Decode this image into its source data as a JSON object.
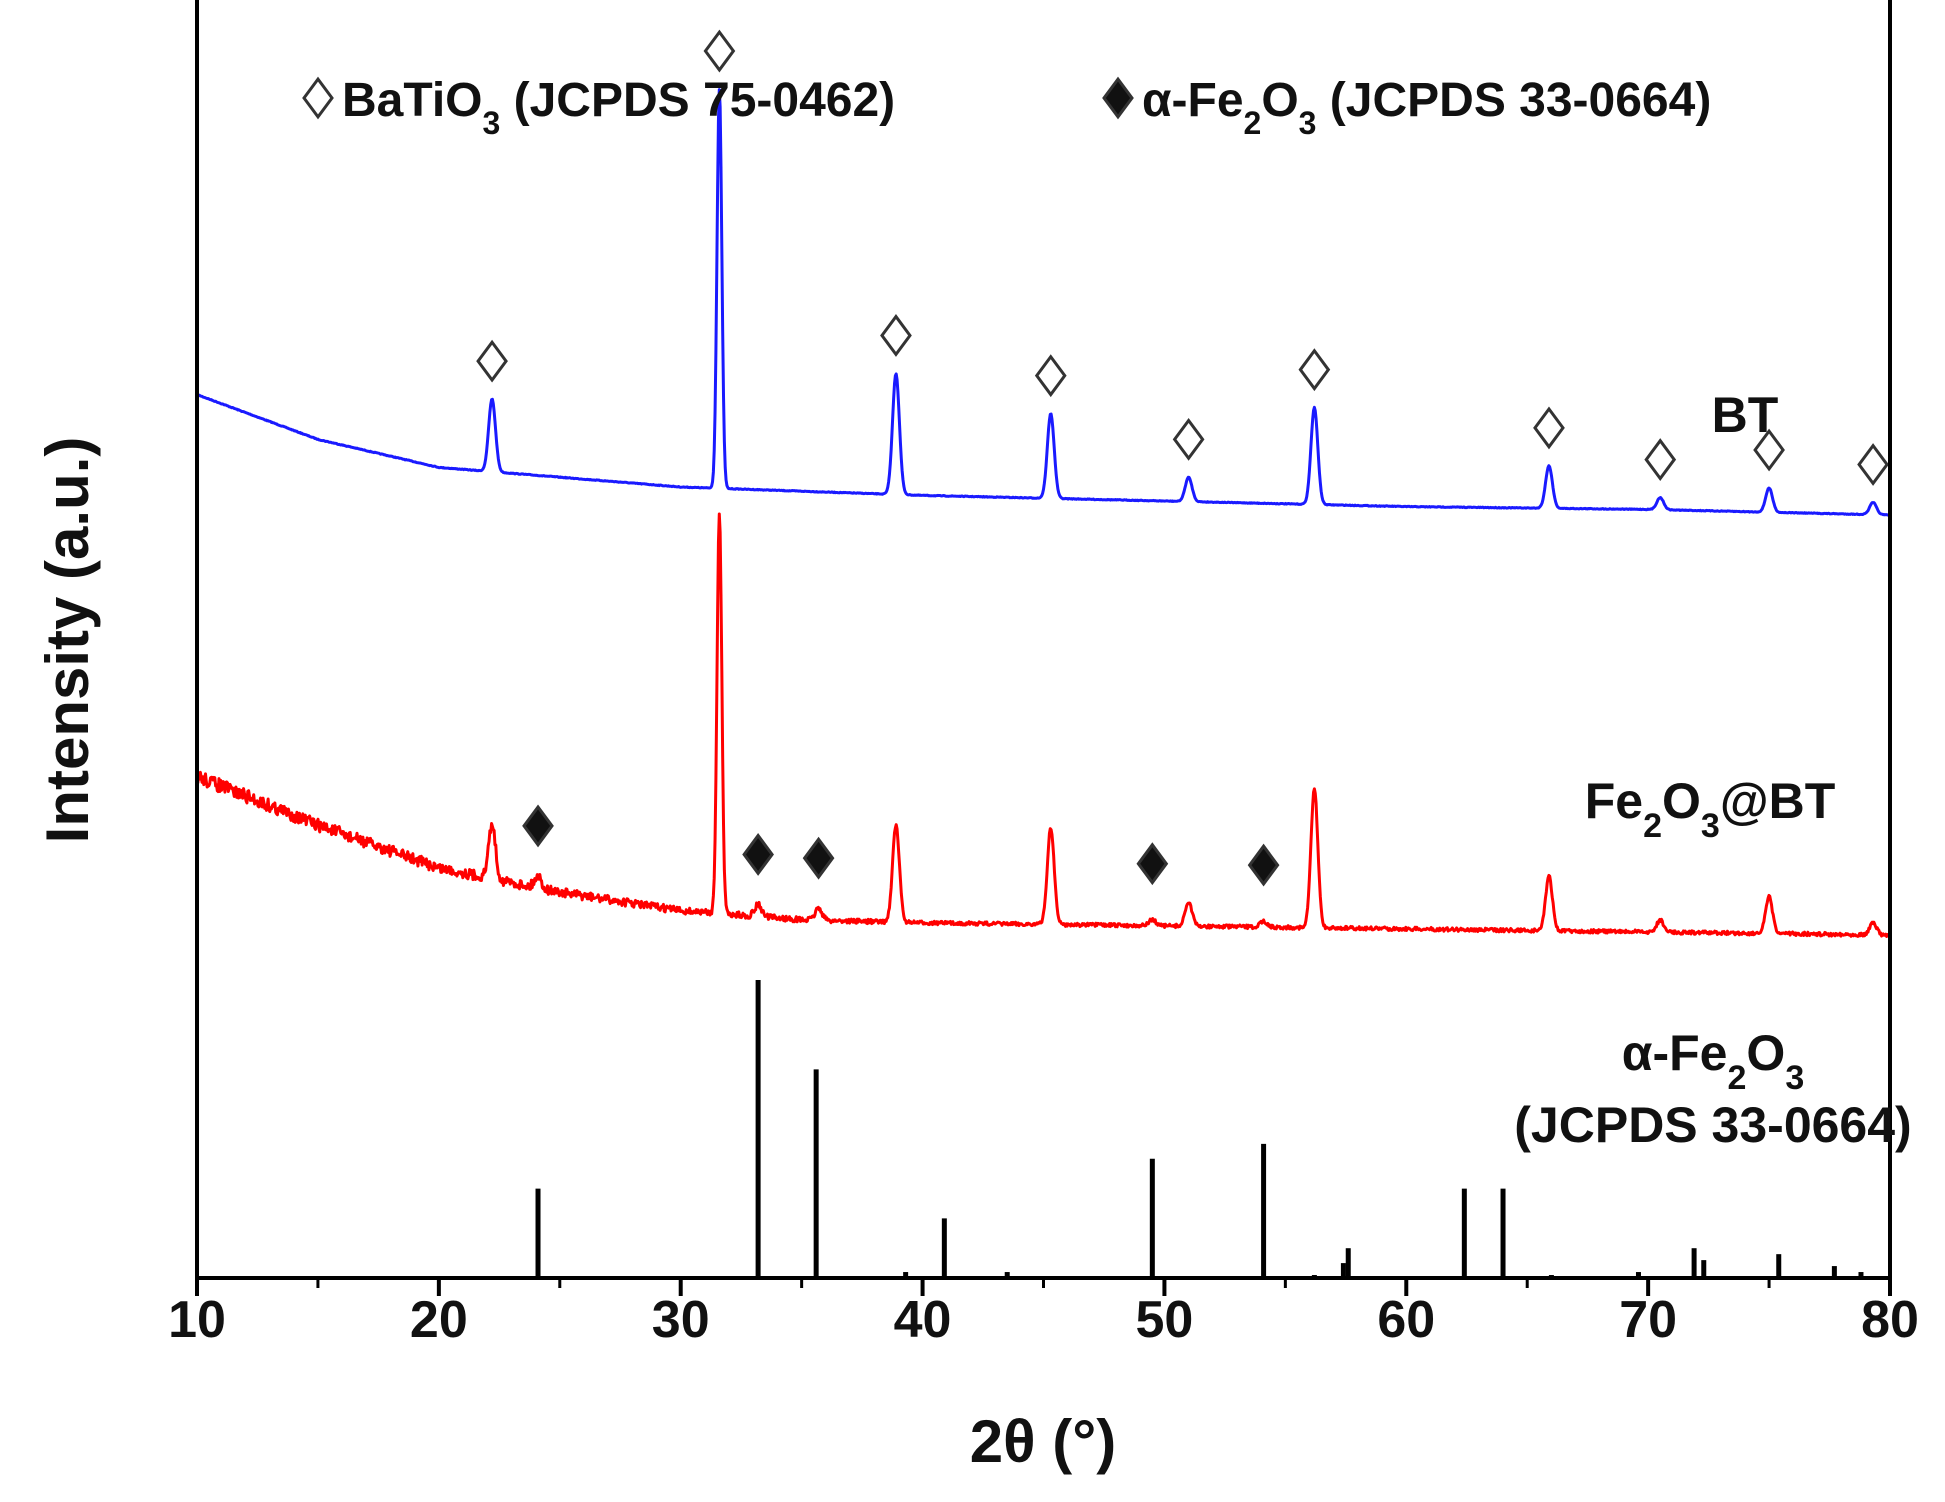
{
  "chart_data": {
    "type": "line",
    "xlabel": "2θ (°)",
    "ylabel": "Intensity (a.u.)",
    "xlim": [
      10,
      80
    ],
    "xticks": [
      "10",
      "20",
      "30",
      "40",
      "50",
      "60",
      "70",
      "80"
    ],
    "grid": false,
    "legend": {
      "position": "top",
      "entries": [
        {
          "symbol": "open-diamond",
          "text": "BaTiO3 (JCPDS 75-0462)",
          "parts": [
            "BaTiO",
            "3",
            " (JCPDS 75-0462)"
          ]
        },
        {
          "symbol": "filled-diamond",
          "text": "α-Fe2O3 (JCPDS 33-0664)",
          "parts": [
            "α-Fe",
            "2",
            "O",
            "3",
            " (JCPDS 33-0664)"
          ]
        }
      ]
    },
    "series": [
      {
        "name": "BT",
        "name_parts": [
          "BT"
        ],
        "color": "#1a1aff",
        "baseline": [
          [
            10,
            0.42
          ],
          [
            15,
            0.34
          ],
          [
            20,
            0.29
          ],
          [
            30,
            0.255
          ],
          [
            40,
            0.24
          ],
          [
            50,
            0.23
          ],
          [
            60,
            0.22
          ],
          [
            70,
            0.215
          ],
          [
            80,
            0.205
          ]
        ],
        "peaks": [
          {
            "x": 22.2,
            "height": 0.12,
            "marker": "open-diamond"
          },
          {
            "x": 31.6,
            "height": 0.66,
            "marker": "open-diamond"
          },
          {
            "x": 38.9,
            "height": 0.2,
            "marker": "open-diamond"
          },
          {
            "x": 45.3,
            "height": 0.14,
            "marker": "open-diamond"
          },
          {
            "x": 51.0,
            "height": 0.04,
            "marker": "open-diamond"
          },
          {
            "x": 56.2,
            "height": 0.16,
            "marker": "open-diamond"
          },
          {
            "x": 65.9,
            "height": 0.07,
            "marker": "open-diamond"
          },
          {
            "x": 70.5,
            "height": 0.02,
            "marker": "open-diamond"
          },
          {
            "x": 75.0,
            "height": 0.04,
            "marker": "open-diamond"
          },
          {
            "x": 79.3,
            "height": 0.02,
            "marker": "open-diamond"
          }
        ]
      },
      {
        "name": "Fe2O3@BT",
        "name_parts": [
          "Fe",
          "2",
          "O",
          "3",
          "@BT"
        ],
        "color": "#ff0000",
        "baseline": [
          [
            10,
            0.94
          ],
          [
            15,
            0.86
          ],
          [
            20,
            0.79
          ],
          [
            25,
            0.75
          ],
          [
            30,
            0.72
          ],
          [
            35,
            0.705
          ],
          [
            40,
            0.7
          ],
          [
            50,
            0.695
          ],
          [
            60,
            0.69
          ],
          [
            70,
            0.685
          ],
          [
            80,
            0.68
          ]
        ],
        "peaks": [
          {
            "x": 22.2,
            "height": 0.09
          },
          {
            "x": 24.1,
            "height": 0.02,
            "marker": "filled-diamond"
          },
          {
            "x": 31.6,
            "height": 0.66
          },
          {
            "x": 33.2,
            "height": 0.02,
            "marker": "filled-diamond"
          },
          {
            "x": 35.7,
            "height": 0.02,
            "marker": "filled-diamond"
          },
          {
            "x": 38.9,
            "height": 0.16
          },
          {
            "x": 45.3,
            "height": 0.16
          },
          {
            "x": 49.5,
            "height": 0.01,
            "marker": "filled-diamond"
          },
          {
            "x": 51.0,
            "height": 0.04
          },
          {
            "x": 54.1,
            "height": 0.01,
            "marker": "filled-diamond"
          },
          {
            "x": 56.2,
            "height": 0.23
          },
          {
            "x": 65.9,
            "height": 0.09
          },
          {
            "x": 70.5,
            "height": 0.02
          },
          {
            "x": 75.0,
            "height": 0.06
          },
          {
            "x": 79.3,
            "height": 0.02
          }
        ]
      },
      {
        "name": "α-Fe2O3 (JCPDS 33-0664)",
        "name_parts": [
          "α-Fe",
          "2",
          "O",
          "3"
        ],
        "name_line2": "(JCPDS 33-0664)",
        "color": "#000000",
        "type": "stick",
        "x": [
          24.1,
          33.2,
          35.6,
          39.3,
          40.9,
          43.5,
          49.5,
          54.1,
          56.2,
          57.4,
          57.6,
          62.4,
          64.0,
          66.0,
          69.6,
          71.9,
          72.3,
          75.4,
          77.7,
          78.8
        ],
        "values": [
          0.3,
          1.0,
          0.7,
          0.02,
          0.2,
          0.02,
          0.4,
          0.45,
          0.01,
          0.05,
          0.1,
          0.3,
          0.3,
          0.01,
          0.02,
          0.1,
          0.06,
          0.08,
          0.04,
          0.02
        ]
      }
    ]
  }
}
